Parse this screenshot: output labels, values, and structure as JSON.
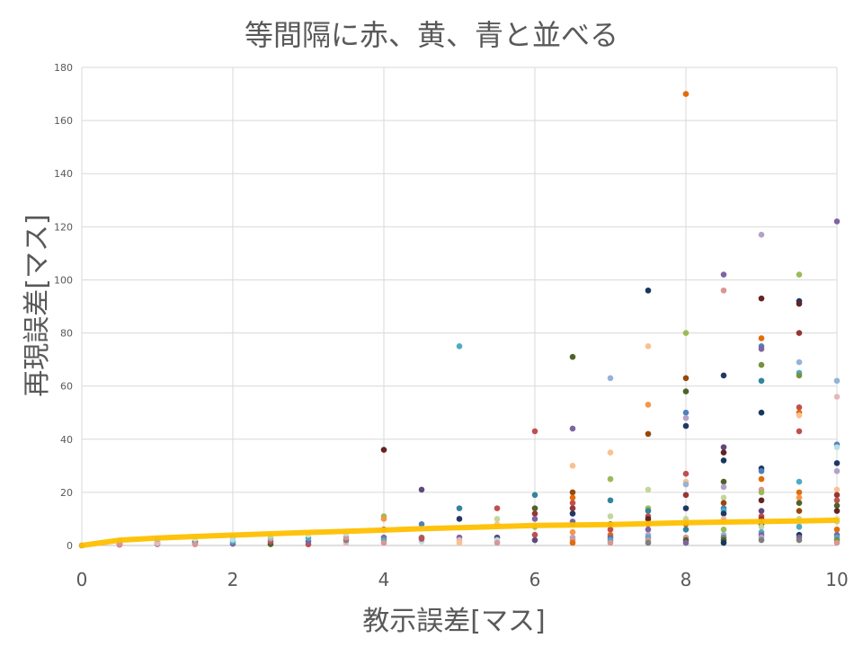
{
  "chart_data": {
    "type": "scatter",
    "title": "等間隔に赤、黄、青と並べる",
    "xlabel": "教示誤差[マス]",
    "ylabel": "再現誤差[マス]",
    "xlim": [
      0,
      10
    ],
    "ylim": [
      0,
      180
    ],
    "x_ticks": [
      "0",
      "2",
      "4",
      "6",
      "8",
      "10"
    ],
    "y_ticks": [
      "0",
      "20",
      "40",
      "60",
      "80",
      "100",
      "120",
      "140",
      "160",
      "180"
    ],
    "grid": true,
    "legend": "none",
    "trend_line": {
      "color": "#ffc000",
      "points": [
        [
          0,
          0
        ],
        [
          0.5,
          2
        ],
        [
          1,
          2.8
        ],
        [
          1.5,
          3.4
        ],
        [
          2,
          3.9
        ],
        [
          2.5,
          4.4
        ],
        [
          3,
          4.9
        ],
        [
          3.5,
          5.3
        ],
        [
          4,
          5.8
        ],
        [
          4.5,
          6.3
        ],
        [
          5,
          6.7
        ],
        [
          5.5,
          7.1
        ],
        [
          6,
          7.5
        ],
        [
          6.5,
          7.7
        ],
        [
          7,
          7.9
        ],
        [
          7.5,
          8.2
        ],
        [
          8,
          8.6
        ],
        [
          8.5,
          8.8
        ],
        [
          9,
          9.0
        ],
        [
          9.5,
          9.2
        ],
        [
          10,
          9.5
        ]
      ]
    },
    "points": [
      {
        "x": 0,
        "y": 0,
        "c": "#7f7f7f"
      },
      {
        "x": 0.5,
        "y": 0.3,
        "c": "#c0504d"
      },
      {
        "x": 0.5,
        "y": 0.8,
        "c": "#4bacc6"
      },
      {
        "x": 0.5,
        "y": 1.2,
        "c": "#9bbb59"
      },
      {
        "x": 0.5,
        "y": 0.5,
        "c": "#d99694"
      },
      {
        "x": 0.5,
        "y": 1.8,
        "c": "#b3a2c7"
      },
      {
        "x": 1,
        "y": 0.5,
        "c": "#8064a2"
      },
      {
        "x": 1,
        "y": 1.2,
        "c": "#4f6228"
      },
      {
        "x": 1,
        "y": 2.0,
        "c": "#c3d69b"
      },
      {
        "x": 1,
        "y": 0.8,
        "c": "#e6b9b8"
      },
      {
        "x": 1,
        "y": 2.5,
        "c": "#95b3d7"
      },
      {
        "x": 1.5,
        "y": 0.8,
        "c": "#c0504d"
      },
      {
        "x": 1.5,
        "y": 1.5,
        "c": "#31859c"
      },
      {
        "x": 1.5,
        "y": 2.5,
        "c": "#d7e4bd"
      },
      {
        "x": 1.5,
        "y": 0.4,
        "c": "#d99694"
      },
      {
        "x": 2,
        "y": 0.6,
        "c": "#8064a2"
      },
      {
        "x": 2,
        "y": 1.5,
        "c": "#4bacc6"
      },
      {
        "x": 2,
        "y": 3.0,
        "c": "#9bbb59"
      },
      {
        "x": 2,
        "y": 2.2,
        "c": "#b7dee8"
      },
      {
        "x": 2.5,
        "y": 0.5,
        "c": "#4f6228"
      },
      {
        "x": 2.5,
        "y": 1.5,
        "c": "#c0504d"
      },
      {
        "x": 2.5,
        "y": 2.6,
        "c": "#95b3d7"
      },
      {
        "x": 2.5,
        "y": 3.5,
        "c": "#c3d69b"
      },
      {
        "x": 3,
        "y": 0.4,
        "c": "#c0504d"
      },
      {
        "x": 3,
        "y": 1.5,
        "c": "#8064a2"
      },
      {
        "x": 3,
        "y": 2.8,
        "c": "#4bacc6"
      },
      {
        "x": 3,
        "y": 4.0,
        "c": "#d7e4bd"
      },
      {
        "x": 3.5,
        "y": 1.0,
        "c": "#e6b9b8"
      },
      {
        "x": 3.5,
        "y": 2.0,
        "c": "#7f7f7f"
      },
      {
        "x": 3.5,
        "y": 3.0,
        "c": "#d99694"
      },
      {
        "x": 3.5,
        "y": 4.5,
        "c": "#b7dee8"
      },
      {
        "x": 4,
        "y": 36,
        "c": "#632423"
      },
      {
        "x": 4,
        "y": 11,
        "c": "#9bbb59"
      },
      {
        "x": 4,
        "y": 10,
        "c": "#f79646"
      },
      {
        "x": 4,
        "y": 6,
        "c": "#c0504d"
      },
      {
        "x": 4,
        "y": 3,
        "c": "#8064a2"
      },
      {
        "x": 4,
        "y": 2,
        "c": "#4bacc6"
      },
      {
        "x": 4,
        "y": 1,
        "c": "#d99694"
      },
      {
        "x": 4.5,
        "y": 21,
        "c": "#5f497a"
      },
      {
        "x": 4.5,
        "y": 8,
        "c": "#4f81bd"
      },
      {
        "x": 4.5,
        "y": 3,
        "c": "#7f7f7f"
      },
      {
        "x": 4.5,
        "y": 1.5,
        "c": "#b7dee8"
      },
      {
        "x": 4.5,
        "y": 2.5,
        "c": "#c0504d"
      },
      {
        "x": 5,
        "y": 75,
        "c": "#4bacc6"
      },
      {
        "x": 5,
        "y": 14,
        "c": "#31859c"
      },
      {
        "x": 5,
        "y": 10,
        "c": "#1f3864"
      },
      {
        "x": 5,
        "y": 3,
        "c": "#8064a2"
      },
      {
        "x": 5,
        "y": 2,
        "c": "#e6b9b8"
      },
      {
        "x": 5,
        "y": 1,
        "c": "#fac090"
      },
      {
        "x": 5.5,
        "y": 14,
        "c": "#c0504d"
      },
      {
        "x": 5.5,
        "y": 10,
        "c": "#c3d69b"
      },
      {
        "x": 5.5,
        "y": 8,
        "c": "#fac090"
      },
      {
        "x": 5.5,
        "y": 3,
        "c": "#604a7b"
      },
      {
        "x": 5.5,
        "y": 2,
        "c": "#b7dee8"
      },
      {
        "x": 5.5,
        "y": 1,
        "c": "#d99694"
      },
      {
        "x": 6,
        "y": 43,
        "c": "#c0504d"
      },
      {
        "x": 6,
        "y": 19,
        "c": "#31859c"
      },
      {
        "x": 6,
        "y": 14,
        "c": "#4f6228"
      },
      {
        "x": 6,
        "y": 12,
        "c": "#953735"
      },
      {
        "x": 6,
        "y": 10,
        "c": "#8064a2"
      },
      {
        "x": 6,
        "y": 7,
        "c": "#9bbb59"
      },
      {
        "x": 6,
        "y": 4,
        "c": "#c0504d"
      },
      {
        "x": 6,
        "y": 2,
        "c": "#604a7b"
      },
      {
        "x": 6.5,
        "y": 71,
        "c": "#4f6228"
      },
      {
        "x": 6.5,
        "y": 44,
        "c": "#8064a2"
      },
      {
        "x": 6.5,
        "y": 30,
        "c": "#fac090"
      },
      {
        "x": 6.5,
        "y": 20,
        "c": "#984807"
      },
      {
        "x": 6.5,
        "y": 18,
        "c": "#e36c09"
      },
      {
        "x": 6.5,
        "y": 16,
        "c": "#c0504d"
      },
      {
        "x": 6.5,
        "y": 14,
        "c": "#953735"
      },
      {
        "x": 6.5,
        "y": 12,
        "c": "#1f3864"
      },
      {
        "x": 6.5,
        "y": 9,
        "c": "#8064a2"
      },
      {
        "x": 6.5,
        "y": 8,
        "c": "#31859c"
      },
      {
        "x": 6.5,
        "y": 5,
        "c": "#f79646"
      },
      {
        "x": 6.5,
        "y": 3,
        "c": "#b3a2c7"
      },
      {
        "x": 6.5,
        "y": 2,
        "c": "#d99694"
      },
      {
        "x": 6.5,
        "y": 1,
        "c": "#e36c09"
      },
      {
        "x": 7,
        "y": 63,
        "c": "#95b3d7"
      },
      {
        "x": 7,
        "y": 35,
        "c": "#fac090"
      },
      {
        "x": 7,
        "y": 25,
        "c": "#9bbb59"
      },
      {
        "x": 7,
        "y": 17,
        "c": "#31859c"
      },
      {
        "x": 7,
        "y": 11,
        "c": "#c3d69b"
      },
      {
        "x": 7,
        "y": 8,
        "c": "#4f6228"
      },
      {
        "x": 7,
        "y": 6,
        "c": "#c0504d"
      },
      {
        "x": 7,
        "y": 4,
        "c": "#e36c09"
      },
      {
        "x": 7,
        "y": 3,
        "c": "#8064a2"
      },
      {
        "x": 7,
        "y": 2,
        "c": "#4bacc6"
      },
      {
        "x": 7,
        "y": 1,
        "c": "#d99694"
      },
      {
        "x": 7.5,
        "y": 96,
        "c": "#17375e"
      },
      {
        "x": 7.5,
        "y": 75,
        "c": "#fac090"
      },
      {
        "x": 7.5,
        "y": 53,
        "c": "#f79646"
      },
      {
        "x": 7.5,
        "y": 42,
        "c": "#984807"
      },
      {
        "x": 7.5,
        "y": 21,
        "c": "#c3d69b"
      },
      {
        "x": 7.5,
        "y": 14,
        "c": "#9bbb59"
      },
      {
        "x": 7.5,
        "y": 13,
        "c": "#31859c"
      },
      {
        "x": 7.5,
        "y": 11,
        "c": "#c0504d"
      },
      {
        "x": 7.5,
        "y": 10,
        "c": "#632423"
      },
      {
        "x": 7.5,
        "y": 8,
        "c": "#e36c09"
      },
      {
        "x": 7.5,
        "y": 6,
        "c": "#8064a2"
      },
      {
        "x": 7.5,
        "y": 4,
        "c": "#b3a2c7"
      },
      {
        "x": 7.5,
        "y": 3,
        "c": "#4bacc6"
      },
      {
        "x": 7.5,
        "y": 2,
        "c": "#d99694"
      },
      {
        "x": 7.5,
        "y": 1,
        "c": "#7f7f7f"
      },
      {
        "x": 8,
        "y": 170,
        "c": "#e36c09"
      },
      {
        "x": 8,
        "y": 80,
        "c": "#9bbb59"
      },
      {
        "x": 8,
        "y": 63,
        "c": "#984807"
      },
      {
        "x": 8,
        "y": 58,
        "c": "#4f6228"
      },
      {
        "x": 8,
        "y": 50,
        "c": "#4f81bd"
      },
      {
        "x": 8,
        "y": 48,
        "c": "#b3a2c7"
      },
      {
        "x": 8,
        "y": 45,
        "c": "#1f3864"
      },
      {
        "x": 8,
        "y": 27,
        "c": "#c0504d"
      },
      {
        "x": 8,
        "y": 24,
        "c": "#fac090"
      },
      {
        "x": 8,
        "y": 23,
        "c": "#95b3d7"
      },
      {
        "x": 8,
        "y": 19,
        "c": "#953735"
      },
      {
        "x": 8,
        "y": 14,
        "c": "#1f3864"
      },
      {
        "x": 8,
        "y": 10,
        "c": "#c3d69b"
      },
      {
        "x": 8,
        "y": 8,
        "c": "#e36c09"
      },
      {
        "x": 8,
        "y": 6,
        "c": "#31859c"
      },
      {
        "x": 8,
        "y": 3,
        "c": "#d99694"
      },
      {
        "x": 8,
        "y": 2,
        "c": "#4f6228"
      },
      {
        "x": 8,
        "y": 1,
        "c": "#8064a2"
      },
      {
        "x": 8.5,
        "y": 102,
        "c": "#8064a2"
      },
      {
        "x": 8.5,
        "y": 96,
        "c": "#d99694"
      },
      {
        "x": 8.5,
        "y": 64,
        "c": "#1f3864"
      },
      {
        "x": 8.5,
        "y": 37,
        "c": "#5f497a"
      },
      {
        "x": 8.5,
        "y": 35,
        "c": "#632423"
      },
      {
        "x": 8.5,
        "y": 32,
        "c": "#17375e"
      },
      {
        "x": 8.5,
        "y": 24,
        "c": "#4f6228"
      },
      {
        "x": 8.5,
        "y": 22,
        "c": "#b3a2c7"
      },
      {
        "x": 8.5,
        "y": 18,
        "c": "#c3d69b"
      },
      {
        "x": 8.5,
        "y": 16,
        "c": "#984807"
      },
      {
        "x": 8.5,
        "y": 14,
        "c": "#4f81bd"
      },
      {
        "x": 8.5,
        "y": 13,
        "c": "#4bacc6"
      },
      {
        "x": 8.5,
        "y": 12,
        "c": "#1f3864"
      },
      {
        "x": 8.5,
        "y": 10,
        "c": "#e6b9b8"
      },
      {
        "x": 8.5,
        "y": 9,
        "c": "#f79646"
      },
      {
        "x": 8.5,
        "y": 6,
        "c": "#9bbb59"
      },
      {
        "x": 8.5,
        "y": 4,
        "c": "#95b3d7"
      },
      {
        "x": 8.5,
        "y": 3,
        "c": "#7f7f7f"
      },
      {
        "x": 8.5,
        "y": 2,
        "c": "#4f6228"
      },
      {
        "x": 8.5,
        "y": 1,
        "c": "#17375e"
      },
      {
        "x": 9,
        "y": 117,
        "c": "#b3a2c7"
      },
      {
        "x": 9,
        "y": 93,
        "c": "#632423"
      },
      {
        "x": 9,
        "y": 78,
        "c": "#e36c09"
      },
      {
        "x": 9,
        "y": 75,
        "c": "#4f81bd"
      },
      {
        "x": 9,
        "y": 74,
        "c": "#8064a2"
      },
      {
        "x": 9,
        "y": 68,
        "c": "#76923c"
      },
      {
        "x": 9,
        "y": 62,
        "c": "#31859c"
      },
      {
        "x": 9,
        "y": 50,
        "c": "#17375e"
      },
      {
        "x": 9,
        "y": 29,
        "c": "#1f3864"
      },
      {
        "x": 9,
        "y": 28,
        "c": "#4f81bd"
      },
      {
        "x": 9,
        "y": 25,
        "c": "#e36c09"
      },
      {
        "x": 9,
        "y": 21,
        "c": "#d99694"
      },
      {
        "x": 9,
        "y": 20,
        "c": "#9bbb59"
      },
      {
        "x": 9,
        "y": 17,
        "c": "#632423"
      },
      {
        "x": 9,
        "y": 13,
        "c": "#5f497a"
      },
      {
        "x": 9,
        "y": 11,
        "c": "#c0504d"
      },
      {
        "x": 9,
        "y": 10,
        "c": "#953735"
      },
      {
        "x": 9,
        "y": 8,
        "c": "#1f3864"
      },
      {
        "x": 9,
        "y": 7,
        "c": "#c3d69b"
      },
      {
        "x": 9,
        "y": 5,
        "c": "#4bacc6"
      },
      {
        "x": 9,
        "y": 4,
        "c": "#8064a2"
      },
      {
        "x": 9,
        "y": 3,
        "c": "#b3a2c7"
      },
      {
        "x": 9,
        "y": 2,
        "c": "#7f7f7f"
      },
      {
        "x": 9.5,
        "y": 102,
        "c": "#9bbb59"
      },
      {
        "x": 9.5,
        "y": 92,
        "c": "#1f3864"
      },
      {
        "x": 9.5,
        "y": 91,
        "c": "#632423"
      },
      {
        "x": 9.5,
        "y": 80,
        "c": "#953735"
      },
      {
        "x": 9.5,
        "y": 69,
        "c": "#95b3d7"
      },
      {
        "x": 9.5,
        "y": 65,
        "c": "#4bacc6"
      },
      {
        "x": 9.5,
        "y": 64,
        "c": "#76923c"
      },
      {
        "x": 9.5,
        "y": 52,
        "c": "#c0504d"
      },
      {
        "x": 9.5,
        "y": 50,
        "c": "#e36c09"
      },
      {
        "x": 9.5,
        "y": 49,
        "c": "#fac090"
      },
      {
        "x": 9.5,
        "y": 43,
        "c": "#c0504d"
      },
      {
        "x": 9.5,
        "y": 24,
        "c": "#4bacc6"
      },
      {
        "x": 9.5,
        "y": 20,
        "c": "#e36c09"
      },
      {
        "x": 9.5,
        "y": 18,
        "c": "#f79646"
      },
      {
        "x": 9.5,
        "y": 16,
        "c": "#4f6228"
      },
      {
        "x": 9.5,
        "y": 13,
        "c": "#984807"
      },
      {
        "x": 9.5,
        "y": 10,
        "c": "#c3d69b"
      },
      {
        "x": 9.5,
        "y": 8,
        "c": "#d7e4bd"
      },
      {
        "x": 9.5,
        "y": 7,
        "c": "#4bacc6"
      },
      {
        "x": 9.5,
        "y": 4,
        "c": "#1f3864"
      },
      {
        "x": 9.5,
        "y": 3,
        "c": "#8064a2"
      },
      {
        "x": 9.5,
        "y": 2,
        "c": "#7f7f7f"
      },
      {
        "x": 10,
        "y": 122,
        "c": "#8064a2"
      },
      {
        "x": 10,
        "y": 62,
        "c": "#95b3d7"
      },
      {
        "x": 10,
        "y": 56,
        "c": "#e6b9b8"
      },
      {
        "x": 10,
        "y": 38,
        "c": "#4f81bd"
      },
      {
        "x": 10,
        "y": 37,
        "c": "#b7dee8"
      },
      {
        "x": 10,
        "y": 31,
        "c": "#1f3864"
      },
      {
        "x": 10,
        "y": 28,
        "c": "#b3a2c7"
      },
      {
        "x": 10,
        "y": 21,
        "c": "#fac090"
      },
      {
        "x": 10,
        "y": 19,
        "c": "#953735"
      },
      {
        "x": 10,
        "y": 17,
        "c": "#c0504d"
      },
      {
        "x": 10,
        "y": 15,
        "c": "#4f6228"
      },
      {
        "x": 10,
        "y": 13,
        "c": "#632423"
      },
      {
        "x": 10,
        "y": 10,
        "c": "#d7e4bd"
      },
      {
        "x": 10,
        "y": 9,
        "c": "#c3d69b"
      },
      {
        "x": 10,
        "y": 6,
        "c": "#e36c09"
      },
      {
        "x": 10,
        "y": 4,
        "c": "#8064a2"
      },
      {
        "x": 10,
        "y": 3,
        "c": "#4bacc6"
      },
      {
        "x": 10,
        "y": 2,
        "c": "#76923c"
      },
      {
        "x": 10,
        "y": 1,
        "c": "#d99694"
      }
    ]
  }
}
